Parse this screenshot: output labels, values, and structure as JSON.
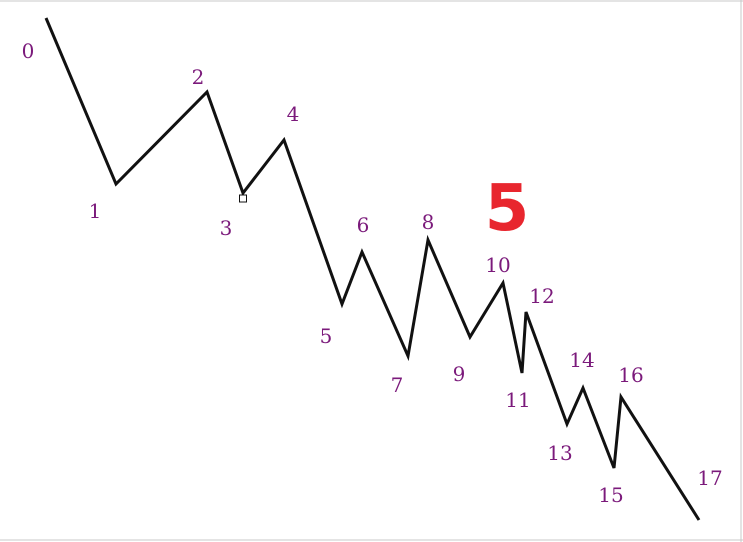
{
  "figure": {
    "big_label": "5",
    "big_label_color": "#e8262e",
    "point_label_color": "#7b1a7b",
    "line_color": "#111111",
    "marker_point": "3"
  },
  "points": [
    {
      "label": "0"
    },
    {
      "label": "1"
    },
    {
      "label": "2"
    },
    {
      "label": "3"
    },
    {
      "label": "4"
    },
    {
      "label": "5"
    },
    {
      "label": "6"
    },
    {
      "label": "7"
    },
    {
      "label": "8"
    },
    {
      "label": "9"
    },
    {
      "label": "10"
    },
    {
      "label": "11"
    },
    {
      "label": "12"
    },
    {
      "label": "13"
    },
    {
      "label": "14"
    },
    {
      "label": "15"
    },
    {
      "label": "16"
    },
    {
      "label": "17"
    }
  ]
}
